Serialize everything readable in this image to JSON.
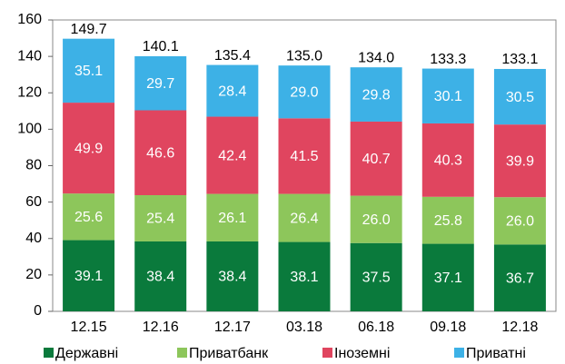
{
  "chart_data": {
    "type": "stacked_bar",
    "categories": [
      "12.15",
      "12.16",
      "12.17",
      "03.18",
      "06.18",
      "09.18",
      "12.18"
    ],
    "series": [
      {
        "name": "Державні",
        "color": "#0a7a3c",
        "values": [
          39.1,
          38.4,
          38.4,
          38.1,
          37.5,
          37.1,
          36.7
        ]
      },
      {
        "name": "Приватбанк",
        "color": "#8dc65b",
        "values": [
          25.6,
          25.4,
          26.1,
          26.4,
          26,
          25.8,
          26
        ],
        "value_labels": [
          "25.6",
          "25.4",
          "26.1",
          "26.4",
          "26.0",
          "25.8",
          "26.0"
        ]
      },
      {
        "name": "Іноземні",
        "color": "#e0455f",
        "values": [
          49.9,
          46.6,
          42.4,
          41.5,
          40.7,
          40.3,
          39.9
        ]
      },
      {
        "name": "Приватні",
        "color": "#3db1e6",
        "values": [
          35.1,
          29.7,
          28.4,
          29,
          29.8,
          30.1,
          30.5
        ],
        "value_labels": [
          "35.1",
          "29.7",
          "28.4",
          "29.0",
          "29.8",
          "30.1",
          "30.5"
        ]
      }
    ],
    "totals": {
      "values": [
        149.7,
        140.1,
        135.4,
        135,
        134,
        133.3,
        133.1
      ],
      "value_labels": [
        "149.7",
        "140.1",
        "135.4",
        "135.0",
        "134.0",
        "133.3",
        "133.1"
      ]
    },
    "ylim": [
      0,
      160
    ],
    "yticks": [
      0,
      20,
      40,
      60,
      80,
      100,
      120,
      140,
      160
    ],
    "grid": false,
    "legend": "bottom"
  }
}
